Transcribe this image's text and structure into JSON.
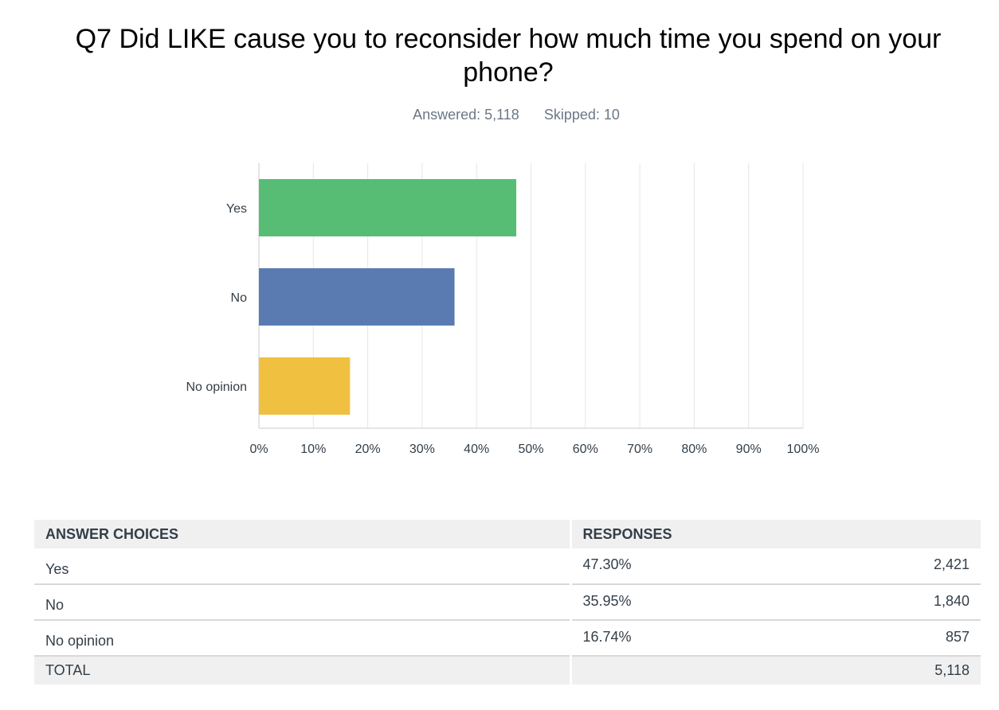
{
  "question": {
    "title": "Q7 Did LIKE cause you to reconsider how much time you spend on your phone?",
    "answered": "Answered: 5,118",
    "skipped": "Skipped: 10"
  },
  "chart_data": {
    "type": "bar",
    "orientation": "horizontal",
    "categories": [
      "Yes",
      "No",
      "No opinion"
    ],
    "values": [
      47.3,
      35.95,
      16.74
    ],
    "colors": [
      "#57bd75",
      "#5a7ab2",
      "#f0c040"
    ],
    "xlim": [
      0,
      100
    ],
    "xticks": [
      "0%",
      "10%",
      "20%",
      "30%",
      "40%",
      "50%",
      "60%",
      "70%",
      "80%",
      "90%",
      "100%"
    ],
    "grid": true
  },
  "table": {
    "headers": {
      "choices": "ANSWER CHOICES",
      "responses": "RESPONSES"
    },
    "rows": [
      {
        "choice": "Yes",
        "percent": "47.30%",
        "count": "2,421"
      },
      {
        "choice": "No",
        "percent": "35.95%",
        "count": "1,840"
      },
      {
        "choice": "No opinion",
        "percent": "16.74%",
        "count": "857"
      }
    ],
    "total": {
      "label": "TOTAL",
      "count": "5,118"
    }
  }
}
